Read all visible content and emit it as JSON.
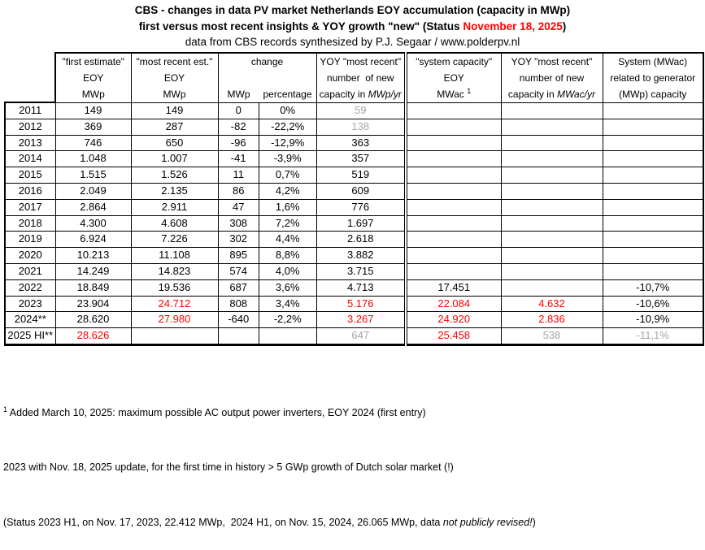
{
  "titles": {
    "line1": "CBS - changes in data PV market Netherlands EOY accumulation (capacity in MWp)",
    "line2_prefix": "first versus most recent insights & YOY growth \"new\" (Status ",
    "line2_date": "November 18, 2025",
    "line2_suffix": ")",
    "line3": "data from CBS records synthesized by P.J. Segaar / www.polderpv.nl"
  },
  "colors": {
    "red": "#FF0000",
    "gray": "#A6A6A6"
  },
  "header": {
    "first_estimate": {
      "l1": "\"first estimate\"",
      "l2": "EOY",
      "l3": "MWp"
    },
    "most_recent": {
      "l1": "\"most recent est.\"",
      "l2": "EOY",
      "l3": "MWp"
    },
    "change": {
      "l1": "change",
      "sub1": "MWp",
      "sub2": "percentage"
    },
    "yoy_mwp": {
      "l1": "YOY \"most recent\"",
      "l2": "number  of new",
      "l3_prefix": "capacity in ",
      "l3_italic": "MWp/yr"
    },
    "system_capacity": {
      "l1": "\"system capacity\"",
      "l2": "EOY",
      "l3_prefix": "MWac ",
      "l3_sup": "1"
    },
    "yoy_mwac": {
      "l1": "YOY \"most recent\"",
      "l2": "number of new",
      "l3_prefix": "capacity in ",
      "l3_italic": "MWac/yr"
    },
    "system_ratio": {
      "l1": "System (MWac)",
      "l2": "related to generator",
      "l3": "(MWp) capacity"
    }
  },
  "table": {
    "columns": [
      "year",
      "first_estimate_EOY_MWp",
      "most_recent_est_EOY_MWp",
      "change_MWp",
      "change_percentage",
      "YOY_new_capacity_MWp_yr",
      "system_capacity_EOY_MWac",
      "YOY_new_capacity_MWac_yr",
      "system_MWac_to_generator_MWp"
    ],
    "rows": [
      [
        "2011",
        "149",
        "149",
        "0",
        "0%",
        {
          "v": "59",
          "c": "gray"
        },
        "",
        "",
        ""
      ],
      [
        "2012",
        "369",
        "287",
        "-82",
        "-22,2%",
        {
          "v": "138",
          "c": "gray"
        },
        "",
        "",
        ""
      ],
      [
        "2013",
        "746",
        "650",
        "-96",
        "-12,9%",
        "363",
        "",
        "",
        ""
      ],
      [
        "2014",
        "1.048",
        "1.007",
        "-41",
        "-3,9%",
        "357",
        "",
        "",
        ""
      ],
      [
        "2015",
        "1.515",
        "1.526",
        "11",
        "0,7%",
        "519",
        "",
        "",
        ""
      ],
      [
        "2016",
        "2.049",
        "2.135",
        "86",
        "4,2%",
        "609",
        "",
        "",
        ""
      ],
      [
        "2017",
        "2.864",
        "2.911",
        "47",
        "1,6%",
        "776",
        "",
        "",
        ""
      ],
      [
        "2018",
        "4.300",
        "4.608",
        "308",
        "7,2%",
        "1.697",
        "",
        "",
        ""
      ],
      [
        "2019",
        "6.924",
        "7.226",
        "302",
        "4,4%",
        "2.618",
        "",
        "",
        ""
      ],
      [
        "2020",
        "10.213",
        "11.108",
        "895",
        "8,8%",
        "3.882",
        "",
        "",
        ""
      ],
      [
        "2021",
        "14.249",
        "14.823",
        "574",
        "4,0%",
        "3.715",
        "",
        "",
        ""
      ],
      [
        "2022",
        "18.849",
        "19.536",
        "687",
        "3,6%",
        "4.713",
        "17.451",
        "",
        "-10,7%"
      ],
      [
        "2023",
        "23.904",
        {
          "v": "24.712",
          "c": "red"
        },
        "808",
        "3,4%",
        {
          "v": "5.176",
          "c": "red"
        },
        {
          "v": "22.084",
          "c": "red"
        },
        {
          "v": "4.632",
          "c": "red"
        },
        "-10,6%"
      ],
      [
        "2024**",
        "28.620",
        {
          "v": "27.980",
          "c": "red"
        },
        "-640",
        "-2,2%",
        {
          "v": "3.267",
          "c": "red"
        },
        {
          "v": "24.920",
          "c": "red"
        },
        {
          "v": "2.836",
          "c": "red"
        },
        "-10,9%"
      ],
      [
        "2025 HI**",
        {
          "v": "28.626",
          "c": "red"
        },
        "",
        "",
        "",
        {
          "v": "647",
          "c": "gray"
        },
        {
          "v": "25.458",
          "c": "red"
        },
        {
          "v": "538",
          "c": "gray"
        },
        {
          "v": "-11,1%",
          "c": "gray"
        }
      ]
    ]
  },
  "footnotes": {
    "f1_sup": "1",
    "f1_text": " Added March 10, 2025: maximum possible AC output power inverters, EOY 2024 (first entry)",
    "f2": "2023 with Nov. 18, 2025 update, for the first time in history > 5 GWp growth of Dutch solar market (!)",
    "f3_prefix": "(Status 2023 H1, on Nov. 17, 2023, 22.412 MWp,  2024 H1, on Nov. 15, 2024, 26.065 MWp, data ",
    "f3_italic": "not publicly revised!",
    "f3_suffix": ")"
  }
}
